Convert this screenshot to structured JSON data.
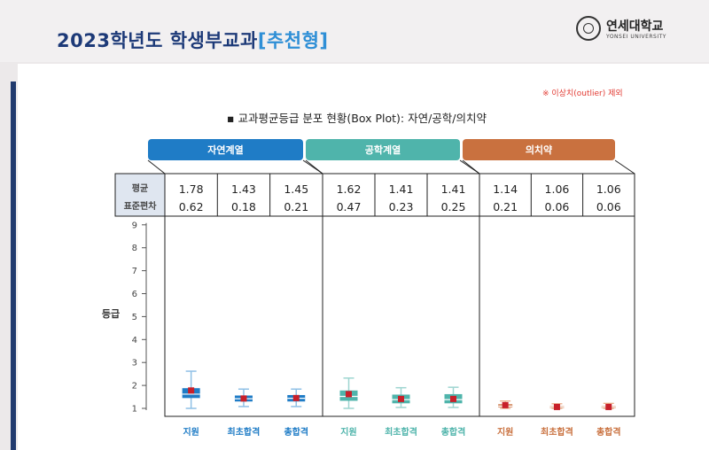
{
  "header": {
    "title_main": "2023학년도 학생부교과",
    "title_accent": "[추천형]",
    "logo_name": "연세대학교",
    "logo_eng": "YONSEI UNIVERSITY"
  },
  "note": "※ 이상치(outlier) 제외",
  "subtitle": "▪ 교과평균등급 분포 현황(Box Plot): 자연/공학/의치약",
  "stat_labels": [
    "평균",
    "표준편차"
  ],
  "colors": {
    "natural": "#1f7cc6",
    "engineering": "#4fb4ab",
    "medical": "#c9713f",
    "mean_marker": "#c8202a"
  },
  "chart_data": {
    "type": "box",
    "title": "교과평균등급 분포 현황(Box Plot): 자연/공학/의치약",
    "ylabel": "등급",
    "ylim": [
      1,
      9
    ],
    "yticks": [
      1,
      2,
      3,
      4,
      5,
      6,
      7,
      8,
      9
    ],
    "groups": [
      {
        "name": "자연계열",
        "color": "#1f7cc6",
        "boxes": [
          {
            "label": "지원",
            "mean": "1.78",
            "sd": "0.62",
            "whisker_low": 1.0,
            "q1": 1.45,
            "median": 1.62,
            "q3": 1.88,
            "whisker_high": 2.62
          },
          {
            "label": "최초합격",
            "mean": "1.43",
            "sd": "0.18",
            "whisker_low": 1.08,
            "q1": 1.3,
            "median": 1.42,
            "q3": 1.56,
            "whisker_high": 1.84
          },
          {
            "label": "총합격",
            "mean": "1.45",
            "sd": "0.21",
            "whisker_low": 1.08,
            "q1": 1.3,
            "median": 1.44,
            "q3": 1.58,
            "whisker_high": 1.84
          }
        ]
      },
      {
        "name": "공학계열",
        "color": "#4fb4ab",
        "boxes": [
          {
            "label": "지원",
            "mean": "1.62",
            "sd": "0.47",
            "whisker_low": 1.0,
            "q1": 1.33,
            "median": 1.52,
            "q3": 1.78,
            "whisker_high": 2.32
          },
          {
            "label": "최초합격",
            "mean": "1.41",
            "sd": "0.23",
            "whisker_low": 1.04,
            "q1": 1.22,
            "median": 1.38,
            "q3": 1.6,
            "whisker_high": 1.9
          },
          {
            "label": "총합격",
            "mean": "1.41",
            "sd": "0.25",
            "whisker_low": 1.04,
            "q1": 1.22,
            "median": 1.38,
            "q3": 1.62,
            "whisker_high": 1.92
          }
        ]
      },
      {
        "name": "의치약",
        "color": "#c9713f",
        "boxes": [
          {
            "label": "지원",
            "mean": "1.14",
            "sd": "0.21",
            "whisker_low": 1.0,
            "q1": 1.05,
            "median": 1.1,
            "q3": 1.18,
            "whisker_high": 1.32
          },
          {
            "label": "최초합격",
            "mean": "1.06",
            "sd": "0.06",
            "whisker_low": 1.0,
            "q1": 1.02,
            "median": 1.05,
            "q3": 1.09,
            "whisker_high": 1.2
          },
          {
            "label": "총합격",
            "mean": "1.06",
            "sd": "0.06",
            "whisker_low": 1.0,
            "q1": 1.02,
            "median": 1.05,
            "q3": 1.09,
            "whisker_high": 1.22
          }
        ]
      }
    ]
  }
}
